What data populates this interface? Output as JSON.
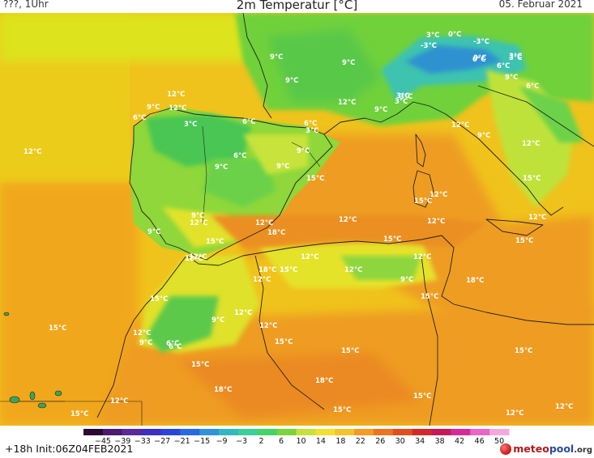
{
  "header": {
    "left": "???, 1Uhr",
    "title": "2m Temperatur [°C]",
    "date": "05. Februar 2021"
  },
  "map": {
    "labels": [
      "12°C",
      "12°C",
      "9°C",
      "12°C",
      "3°C",
      "6°C",
      "6°C",
      "6°C",
      "9°C",
      "9°C",
      "9°C",
      "9°C",
      "12°C",
      "9°C",
      "12°C",
      "12°C",
      "15°C",
      "12°C",
      "18°C",
      "15°C",
      "18°C",
      "12°C",
      "12°C",
      "15°C",
      "12°C",
      "15°C",
      "9°C",
      "12°C",
      "12°C",
      "15°C",
      "9°C",
      "6°C",
      "6°C",
      "15°C",
      "15°C",
      "12°C",
      "15°C",
      "15°C",
      "18°C",
      "18°C",
      "12°C",
      "15°C",
      "9°C",
      "9°C",
      "3°C",
      "6°C",
      "3°C",
      "9°C",
      "-3°C",
      "0°C",
      "-3°C",
      "3°C",
      "0°C",
      "3°C",
      "3°C",
      "9°C",
      "12°C",
      "12°C",
      "9°C",
      "15°C",
      "12°C",
      "12°C",
      "12°C",
      "12°C",
      "9°C",
      "15°C",
      "12°C",
      "15°C",
      "18°C",
      "15°C",
      "15°C",
      "15°C",
      "15°C",
      "12°C",
      "3°C",
      "6°C",
      "9°C",
      "6°C",
      "3°C",
      "0°C",
      "12°C",
      "12°C"
    ]
  },
  "colorbar": {
    "ticks": [
      "-45",
      "-39",
      "-33",
      "-27",
      "-21",
      "-15",
      "-9",
      "-3",
      "2",
      "6",
      "10",
      "14",
      "18",
      "22",
      "26",
      "30",
      "34",
      "38",
      "42",
      "46",
      "50"
    ],
    "colors": [
      "#2a0a33",
      "#4c1a6e",
      "#5b2a9a",
      "#3c2fc2",
      "#2a46d8",
      "#2a6ae0",
      "#2e94d6",
      "#33b8c0",
      "#3ccf9a",
      "#44d466",
      "#7ad43a",
      "#c6e23a",
      "#f2e02e",
      "#f5c22a",
      "#f39b22",
      "#ec7420",
      "#e0501e",
      "#d22a2a",
      "#c41a5a",
      "#d62a9a",
      "#e866c4",
      "#f4a8e0"
    ]
  },
  "footer": {
    "init": "+18h  Init:06Z04FEB2021",
    "logo_a": "meteo",
    "logo_b": "pool",
    "logo_c": ".org"
  }
}
